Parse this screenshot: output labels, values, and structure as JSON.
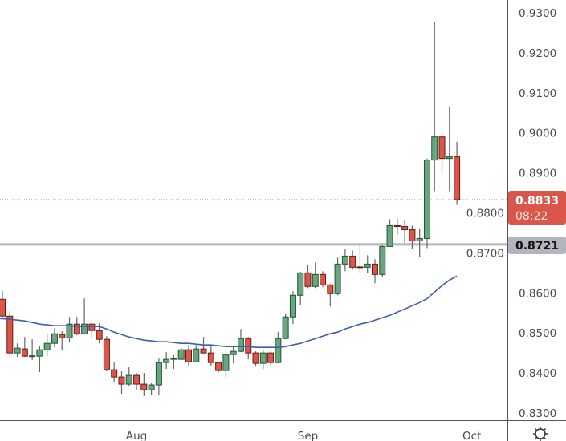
{
  "chart_data": {
    "type": "candlestick",
    "title": "",
    "ylim": [
      0.83,
      0.93
    ],
    "y_ticks": [
      "0.9300",
      "0.9200",
      "0.9100",
      "0.9000",
      "0.8900",
      "0.8800",
      "0.8700",
      "0.8600",
      "0.8500",
      "0.8400",
      "0.8300"
    ],
    "x_ticks": [
      {
        "label": "Aug",
        "at_index": 18
      },
      {
        "label": "Sep",
        "at_index": 41
      },
      {
        "label": "Oct",
        "at_index": 63
      }
    ],
    "ohlc": [
      [
        0.8584,
        0.8604,
        0.854,
        0.8542
      ],
      [
        0.8542,
        0.8554,
        0.8444,
        0.845
      ],
      [
        0.845,
        0.8474,
        0.844,
        0.8462
      ],
      [
        0.846,
        0.849,
        0.844,
        0.8442
      ],
      [
        0.8442,
        0.8484,
        0.8432,
        0.8443
      ],
      [
        0.8442,
        0.8468,
        0.8402,
        0.8458
      ],
      [
        0.8458,
        0.8498,
        0.8442,
        0.8474
      ],
      [
        0.8474,
        0.8512,
        0.8464,
        0.8498
      ],
      [
        0.8496,
        0.8504,
        0.8456,
        0.8488
      ],
      [
        0.8488,
        0.854,
        0.8476,
        0.8522
      ],
      [
        0.8522,
        0.854,
        0.8494,
        0.8498
      ],
      [
        0.8498,
        0.8586,
        0.8496,
        0.8522
      ],
      [
        0.8522,
        0.853,
        0.8486,
        0.8506
      ],
      [
        0.8506,
        0.8524,
        0.8474,
        0.8484
      ],
      [
        0.8484,
        0.8492,
        0.8404,
        0.8408
      ],
      [
        0.8408,
        0.8426,
        0.8376,
        0.839
      ],
      [
        0.839,
        0.8404,
        0.8346,
        0.8372
      ],
      [
        0.8372,
        0.8414,
        0.8368,
        0.8394
      ],
      [
        0.8394,
        0.84,
        0.8356,
        0.8372
      ],
      [
        0.8372,
        0.84,
        0.8342,
        0.8358
      ],
      [
        0.8358,
        0.8374,
        0.8344,
        0.837
      ],
      [
        0.837,
        0.8436,
        0.8344,
        0.8426
      ],
      [
        0.8426,
        0.8452,
        0.841,
        0.8434
      ],
      [
        0.8434,
        0.8444,
        0.841,
        0.8436
      ],
      [
        0.8434,
        0.8462,
        0.8432,
        0.8458
      ],
      [
        0.8458,
        0.847,
        0.8418,
        0.8428
      ],
      [
        0.8428,
        0.847,
        0.8426,
        0.846
      ],
      [
        0.846,
        0.849,
        0.8449,
        0.845
      ],
      [
        0.845,
        0.847,
        0.8418,
        0.8426
      ],
      [
        0.8426,
        0.8426,
        0.8402,
        0.8406
      ],
      [
        0.8406,
        0.845,
        0.8388,
        0.8446
      ],
      [
        0.8446,
        0.8468,
        0.8424,
        0.8454
      ],
      [
        0.8454,
        0.851,
        0.8452,
        0.8486
      ],
      [
        0.8486,
        0.849,
        0.8434,
        0.845
      ],
      [
        0.845,
        0.8454,
        0.8416,
        0.8424
      ],
      [
        0.8424,
        0.8456,
        0.841,
        0.845
      ],
      [
        0.845,
        0.8454,
        0.842,
        0.8426
      ],
      [
        0.8426,
        0.8502,
        0.8424,
        0.8486
      ],
      [
        0.8486,
        0.8548,
        0.8484,
        0.854
      ],
      [
        0.854,
        0.8604,
        0.8522,
        0.8594
      ],
      [
        0.8594,
        0.8652,
        0.857,
        0.865
      ],
      [
        0.865,
        0.867,
        0.8612,
        0.8616
      ],
      [
        0.8616,
        0.8676,
        0.8612,
        0.8646
      ],
      [
        0.8646,
        0.8654,
        0.8614,
        0.862
      ],
      [
        0.862,
        0.8622,
        0.8566,
        0.8598
      ],
      [
        0.8598,
        0.8688,
        0.8594,
        0.8672
      ],
      [
        0.8672,
        0.871,
        0.8654,
        0.8692
      ],
      [
        0.8692,
        0.8706,
        0.8658,
        0.8664
      ],
      [
        0.8665,
        0.8722,
        0.8648,
        0.8664
      ],
      [
        0.8664,
        0.8694,
        0.865,
        0.8672
      ],
      [
        0.8672,
        0.8684,
        0.8624,
        0.8646
      ],
      [
        0.8646,
        0.872,
        0.864,
        0.8716
      ],
      [
        0.8716,
        0.8784,
        0.8716,
        0.8768
      ],
      [
        0.8768,
        0.8786,
        0.8746,
        0.8766
      ],
      [
        0.8766,
        0.8782,
        0.8724,
        0.8758
      ],
      [
        0.8758,
        0.8768,
        0.871,
        0.873
      ],
      [
        0.873,
        0.876,
        0.869,
        0.8736
      ],
      [
        0.8736,
        0.8936,
        0.8712,
        0.8932
      ],
      [
        0.8932,
        0.9278,
        0.8854,
        0.899
      ],
      [
        0.899,
        0.9002,
        0.8896,
        0.8936
      ],
      [
        0.8936,
        0.9066,
        0.8854,
        0.894
      ],
      [
        0.894,
        0.8978,
        0.882,
        0.8833
      ]
    ],
    "moving_average": [
      0.8536,
      0.8534,
      0.8532,
      0.853,
      0.8526,
      0.8522,
      0.852,
      0.8518,
      0.8518,
      0.8518,
      0.8516,
      0.8516,
      0.8516,
      0.8516,
      0.851,
      0.8502,
      0.8496,
      0.849,
      0.8486,
      0.8482,
      0.848,
      0.8478,
      0.8478,
      0.8476,
      0.8474,
      0.8474,
      0.8472,
      0.847,
      0.847,
      0.8468,
      0.8466,
      0.8466,
      0.8466,
      0.8466,
      0.8464,
      0.8464,
      0.8464,
      0.8464,
      0.8466,
      0.847,
      0.8474,
      0.848,
      0.8486,
      0.8492,
      0.8498,
      0.8502,
      0.851,
      0.8516,
      0.8522,
      0.8526,
      0.8532,
      0.8538,
      0.8544,
      0.8552,
      0.856,
      0.8568,
      0.8576,
      0.8586,
      0.8602,
      0.8618,
      0.8632,
      0.8642
    ],
    "horizontal_line": {
      "value": 0.8721,
      "label": "0.8721",
      "color": "#b2b5be"
    },
    "current_price": {
      "value": 0.8833,
      "label": "0.8833",
      "countdown": "08:22",
      "color": "#d9574a"
    },
    "colors": {
      "up": "#6aa57f",
      "up_border": "#1e5631",
      "down": "#d9574a",
      "down_border": "#6b1a12",
      "ma": "#3f5db5",
      "wick": "#666666"
    },
    "grid": false
  },
  "settings_icon": "gear-icon"
}
